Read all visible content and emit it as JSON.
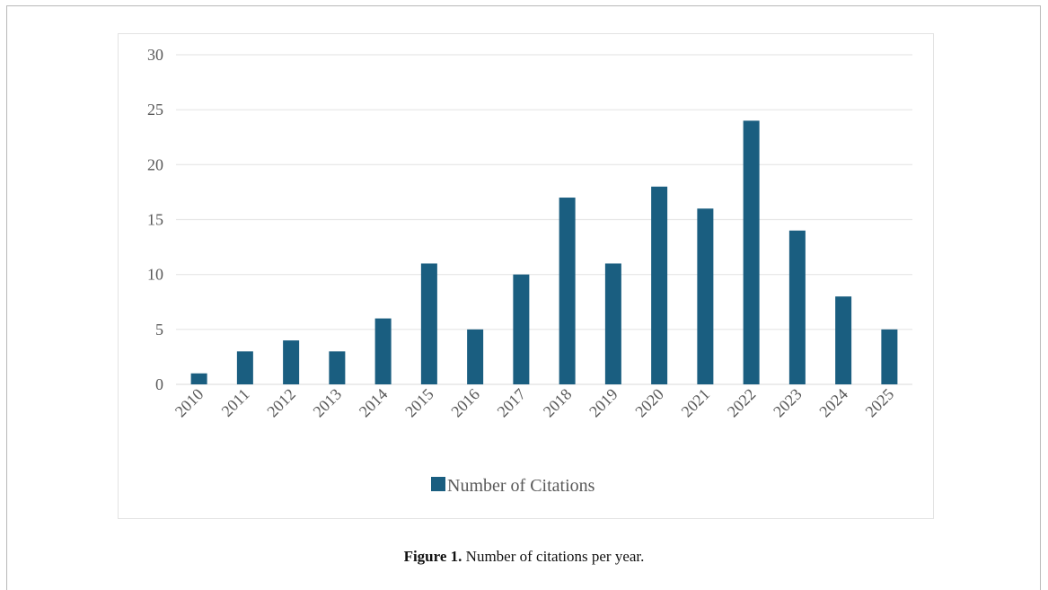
{
  "chart_data": {
    "type": "bar",
    "categories": [
      "2010",
      "2011",
      "2012",
      "2013",
      "2014",
      "2015",
      "2016",
      "2017",
      "2018",
      "2019",
      "2020",
      "2021",
      "2022",
      "2023",
      "2024",
      "2025"
    ],
    "series": [
      {
        "name": "Number of Citations",
        "values": [
          1,
          3,
          4,
          3,
          6,
          11,
          5,
          10,
          17,
          11,
          18,
          16,
          24,
          14,
          8,
          5
        ]
      }
    ],
    "ylim": [
      0,
      30
    ],
    "yticks": [
      0,
      5,
      10,
      15,
      20,
      25,
      30
    ],
    "grid": true,
    "legend": "bottom",
    "bar_color": "#1a5e80"
  },
  "caption": {
    "label": "Figure 1.",
    "text": "Number of citations per year."
  },
  "colors": {
    "bar": "#1a5e80",
    "grid": "#e6e6e6",
    "tick_text": "#595959"
  }
}
